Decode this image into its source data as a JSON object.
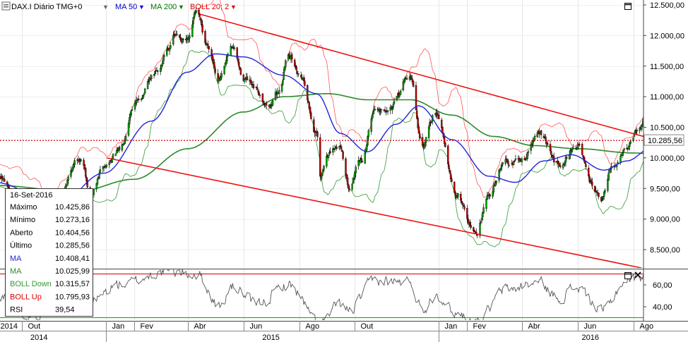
{
  "header": {
    "symbol_label": "DAX.I Diário TMG+0",
    "indicators": [
      {
        "label": "MA 50",
        "color": "#0000cc"
      },
      {
        "label": "MA 200",
        "color": "#007700"
      },
      {
        "label": "BOLL 20; 2",
        "color": "#dd0000"
      }
    ],
    "dropdown_glyph": "▼",
    "settings_icon": "chart-settings-icon",
    "maximize_icon": "maximize-icon",
    "close_icon": "close-icon"
  },
  "colors": {
    "candle_up": "#00aa00",
    "candle_down": "#cc0000",
    "ma50": "#2222dd",
    "ma200": "#2a8a2a",
    "boll_up": "#ff5555",
    "boll_down": "#339933",
    "channel": "#ee1111",
    "last_price_line": "#cc0000",
    "rsi_line": "#555555"
  },
  "chart_data": {
    "type": "candlestick",
    "title": "DAX.I Diário TMG+0",
    "price_axis": {
      "ticks": [
        "12.500,00",
        "12.000,00",
        "11.500,00",
        "11.000,00",
        "10.500,00",
        "10.000,00",
        "9.500,00",
        "9.000,00",
        "8.500,00"
      ],
      "tick_values": [
        12500,
        12000,
        11500,
        11000,
        10500,
        10000,
        9500,
        9000,
        8500
      ],
      "ylim": [
        8200,
        12550
      ],
      "last_value_label": "10.285,56",
      "last_value": 10285.56
    },
    "rsi_axis": {
      "ticks": [
        "60,00",
        "40,00"
      ],
      "tick_values": [
        60,
        40
      ],
      "ylim": [
        30,
        75
      ],
      "levels": [
        70,
        30
      ]
    },
    "time_axis": {
      "month_labels": [
        "2014",
        "Out",
        "Jan",
        "Fev",
        "Abr",
        "Jun",
        "Ago",
        "Out",
        "Jan",
        "Fev",
        "Abr",
        "Jun",
        "Ago"
      ],
      "month_dates": [
        "2014-09-01",
        "2014-10-01",
        "2015-01-01",
        "2015-02-01",
        "2015-04-01",
        "2015-06-01",
        "2015-08-01",
        "2015-10-01",
        "2016-01-01",
        "2016-02-01",
        "2016-04-01",
        "2016-06-01",
        "2016-08-01"
      ],
      "year_labels": [
        "2014",
        "2015",
        "2016"
      ],
      "year_centers": [
        "2014-10-20",
        "2015-07-01",
        "2016-06-15"
      ],
      "xlim": [
        "2014-09-01",
        "2016-12-31"
      ]
    },
    "price_anchors": [
      [
        "2014-09-01",
        9700
      ],
      [
        "2014-10-01",
        9300
      ],
      [
        "2014-10-16",
        8600
      ],
      [
        "2014-11-05",
        9300
      ],
      [
        "2014-12-05",
        10000
      ],
      [
        "2014-12-16",
        9400
      ],
      [
        "2014-12-30",
        9850
      ],
      [
        "2015-01-15",
        10100
      ],
      [
        "2015-02-02",
        10900
      ],
      [
        "2015-02-27",
        11400
      ],
      [
        "2015-03-10",
        11800
      ],
      [
        "2015-03-16",
        12000
      ],
      [
        "2015-04-02",
        11900
      ],
      [
        "2015-04-10",
        12380
      ],
      [
        "2015-04-22",
        11850
      ],
      [
        "2015-05-06",
        11300
      ],
      [
        "2015-05-20",
        11800
      ],
      [
        "2015-06-01",
        11300
      ],
      [
        "2015-06-15",
        11100
      ],
      [
        "2015-06-29",
        10850
      ],
      [
        "2015-07-10",
        11100
      ],
      [
        "2015-07-20",
        11700
      ],
      [
        "2015-08-03",
        11350
      ],
      [
        "2015-08-20",
        10400
      ],
      [
        "2015-08-24",
        9650
      ],
      [
        "2015-09-01",
        10050
      ],
      [
        "2015-09-15",
        10200
      ],
      [
        "2015-09-24",
        9550
      ],
      [
        "2015-10-08",
        9950
      ],
      [
        "2015-10-23",
        10800
      ],
      [
        "2015-11-10",
        10850
      ],
      [
        "2015-11-30",
        11350
      ],
      [
        "2015-12-14",
        10200
      ],
      [
        "2015-12-29",
        10750
      ],
      [
        "2016-01-20",
        9400
      ],
      [
        "2016-02-11",
        8750
      ],
      [
        "2016-02-23",
        9400
      ],
      [
        "2016-03-15",
        9950
      ],
      [
        "2016-03-31",
        9950
      ],
      [
        "2016-04-20",
        10400
      ],
      [
        "2016-05-10",
        9900
      ],
      [
        "2016-06-01",
        10200
      ],
      [
        "2016-06-16",
        9550
      ],
      [
        "2016-06-27",
        9300
      ],
      [
        "2016-07-08",
        9800
      ],
      [
        "2016-07-25",
        10200
      ],
      [
        "2016-08-05",
        10450
      ],
      [
        "2016-08-15",
        10700
      ],
      [
        "2016-09-01",
        10600
      ],
      [
        "2016-09-08",
        10690
      ],
      [
        "2016-09-16",
        10290
      ]
    ],
    "ma50_anchors": [
      [
        "2014-09-01",
        9600
      ],
      [
        "2014-11-10",
        9250
      ],
      [
        "2014-12-30",
        9750
      ],
      [
        "2015-02-20",
        10600
      ],
      [
        "2015-03-31",
        11400
      ],
      [
        "2015-05-01",
        11700
      ],
      [
        "2015-06-01",
        11650
      ],
      [
        "2015-07-15",
        11350
      ],
      [
        "2015-08-20",
        11050
      ],
      [
        "2015-09-15",
        10400
      ],
      [
        "2015-10-15",
        10100
      ],
      [
        "2015-11-15",
        10550
      ],
      [
        "2015-12-10",
        10850
      ],
      [
        "2016-01-15",
        10300
      ],
      [
        "2016-02-25",
        9700
      ],
      [
        "2016-03-25",
        9600
      ],
      [
        "2016-04-25",
        9950
      ],
      [
        "2016-05-25",
        10050
      ],
      [
        "2016-06-30",
        9800
      ],
      [
        "2016-07-25",
        9950
      ],
      [
        "2016-08-20",
        10150
      ],
      [
        "2016-09-16",
        10408
      ]
    ],
    "ma200_anchors": [
      [
        "2014-09-01",
        9550
      ],
      [
        "2014-12-01",
        9450
      ],
      [
        "2015-02-01",
        9650
      ],
      [
        "2015-04-01",
        10150
      ],
      [
        "2015-06-01",
        10750
      ],
      [
        "2015-07-15",
        11000
      ],
      [
        "2015-09-01",
        11050
      ],
      [
        "2015-10-15",
        10950
      ],
      [
        "2015-12-01",
        10950
      ],
      [
        "2016-01-15",
        10700
      ],
      [
        "2016-03-01",
        10350
      ],
      [
        "2016-04-15",
        10200
      ],
      [
        "2016-06-01",
        10150
      ],
      [
        "2016-08-01",
        10080
      ],
      [
        "2016-09-16",
        10026
      ]
    ],
    "channel_upper": [
      [
        "2015-04-14",
        12350
      ],
      [
        "2016-10-24",
        10050
      ]
    ],
    "channel_lower": [
      [
        "2015-01-02",
        10000
      ],
      [
        "2016-08-10",
        8200
      ]
    ],
    "rsi_anchors": [
      [
        "2014-09-01",
        52
      ],
      [
        "2014-10-16",
        32
      ],
      [
        "2014-11-15",
        55
      ],
      [
        "2014-12-16",
        45
      ],
      [
        "2015-01-15",
        60
      ],
      [
        "2015-03-10",
        72
      ],
      [
        "2015-04-10",
        70
      ],
      [
        "2015-05-06",
        40
      ],
      [
        "2015-05-20",
        58
      ],
      [
        "2015-06-15",
        42
      ],
      [
        "2015-07-20",
        60
      ],
      [
        "2015-08-24",
        25
      ],
      [
        "2015-09-15",
        42
      ],
      [
        "2015-09-24",
        36
      ],
      [
        "2015-10-23",
        64
      ],
      [
        "2015-11-30",
        62
      ],
      [
        "2015-12-14",
        38
      ],
      [
        "2015-12-29",
        52
      ],
      [
        "2016-01-20",
        34
      ],
      [
        "2016-02-11",
        27
      ],
      [
        "2016-03-15",
        56
      ],
      [
        "2016-04-20",
        62
      ],
      [
        "2016-05-10",
        48
      ],
      [
        "2016-06-01",
        58
      ],
      [
        "2016-06-27",
        36
      ],
      [
        "2016-07-25",
        64
      ],
      [
        "2016-08-15",
        70
      ],
      [
        "2016-09-08",
        58
      ],
      [
        "2016-09-16",
        39.54
      ]
    ]
  },
  "data_window": {
    "date": "16-Set-2016",
    "rows": [
      {
        "label": "Máximo",
        "value": "10.425,86",
        "color": "#000000"
      },
      {
        "label": "Mínimo",
        "value": "10.273,16",
        "color": "#000000"
      },
      {
        "label": "Aberto",
        "value": "10.404,56",
        "color": "#000000"
      },
      {
        "label": "Último",
        "value": "10.285,56",
        "color": "#000000"
      },
      {
        "label": "MA",
        "value": "10.408,41",
        "color": "#2222dd"
      },
      {
        "label": "MA",
        "value": "10.025,99",
        "color": "#2a8a2a"
      },
      {
        "label": "BOLL Down",
        "value": "10.315,57",
        "color": "#339933"
      },
      {
        "label": "BOLL Up",
        "value": "10.795,93",
        "color": "#dd0000"
      },
      {
        "label": "RSI",
        "value": "39,54",
        "color": "#000000"
      }
    ]
  }
}
